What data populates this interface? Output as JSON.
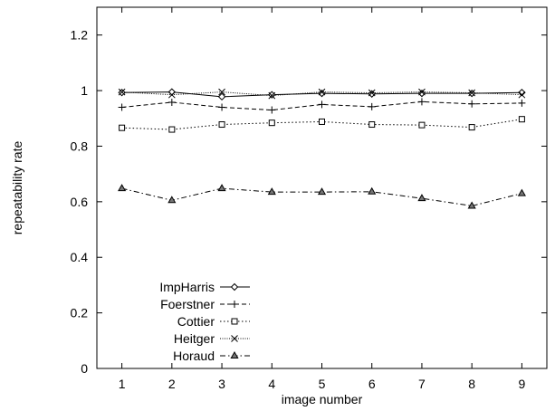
{
  "chart_data": {
    "type": "line",
    "xlabel": "image number",
    "ylabel": "repeatability rate",
    "xlim": [
      0.5,
      9.5
    ],
    "ylim": [
      0,
      1.3
    ],
    "x": [
      1,
      2,
      3,
      4,
      5,
      6,
      7,
      8,
      9
    ],
    "xticks": [
      "1",
      "2",
      "3",
      "4",
      "5",
      "6",
      "7",
      "8",
      "9"
    ],
    "yticks": [
      {
        "value": 0,
        "label": "0"
      },
      {
        "value": 0.2,
        "label": "0.2"
      },
      {
        "value": 0.4,
        "label": "0.4"
      },
      {
        "value": 0.6,
        "label": "0.6"
      },
      {
        "value": 0.8,
        "label": "0.8"
      },
      {
        "value": 1.0,
        "label": "1"
      },
      {
        "value": 1.2,
        "label": "1.2"
      }
    ],
    "grid": false,
    "legend_position": "bottom-left",
    "series": [
      {
        "name": "ImpHarris",
        "marker": "diamond",
        "dash": "",
        "values": [
          0.993,
          0.995,
          0.978,
          0.985,
          0.99,
          0.988,
          0.99,
          0.99,
          0.993
        ]
      },
      {
        "name": "Foerstner",
        "marker": "plus",
        "dash": "5,3",
        "values": [
          0.94,
          0.958,
          0.94,
          0.93,
          0.95,
          0.942,
          0.96,
          0.952,
          0.955
        ]
      },
      {
        "name": "Cottier",
        "marker": "square",
        "dash": "1.5,2.5",
        "values": [
          0.866,
          0.86,
          0.878,
          0.884,
          0.888,
          0.878,
          0.876,
          0.868,
          0.897
        ]
      },
      {
        "name": "Heitger",
        "marker": "cross",
        "dash": "1,1.5",
        "values": [
          0.995,
          0.985,
          0.995,
          0.982,
          0.995,
          0.992,
          0.995,
          0.992,
          0.985
        ]
      },
      {
        "name": "Horaud",
        "marker": "triangle",
        "dash": "6,3,1.5,3",
        "values": [
          0.648,
          0.605,
          0.648,
          0.635,
          0.635,
          0.636,
          0.612,
          0.585,
          0.63
        ]
      }
    ]
  }
}
